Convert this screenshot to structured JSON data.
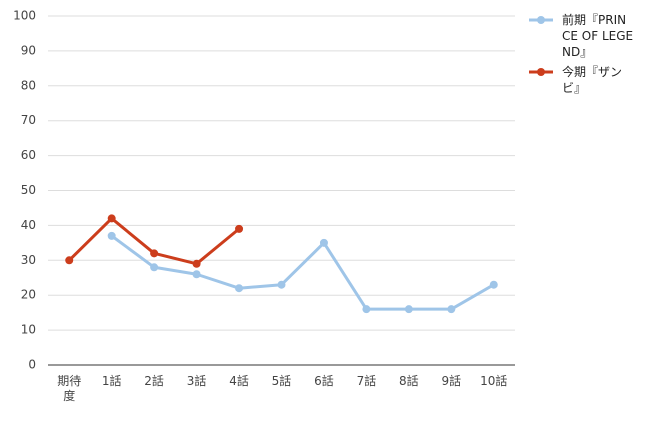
{
  "chart_data": {
    "type": "line",
    "categories": [
      "期待度",
      "1話",
      "2話",
      "3話",
      "4話",
      "5話",
      "6話",
      "7話",
      "8話",
      "9話",
      "10話"
    ],
    "series": [
      {
        "name": "前期『PRINCE OF LEGEND』",
        "color": "#9fc5e8",
        "values": [
          null,
          37,
          28,
          26,
          22,
          23,
          35,
          16,
          16,
          16,
          23
        ]
      },
      {
        "name": "今期『ザンビ』",
        "color": "#cc3d1c",
        "values": [
          30,
          42,
          32,
          29,
          39,
          null,
          null,
          null,
          null,
          null,
          null
        ]
      }
    ],
    "ylim": [
      0,
      100
    ],
    "yticks": [
      0,
      10,
      20,
      30,
      40,
      50,
      60,
      70,
      80,
      90,
      100
    ],
    "grid": true
  }
}
